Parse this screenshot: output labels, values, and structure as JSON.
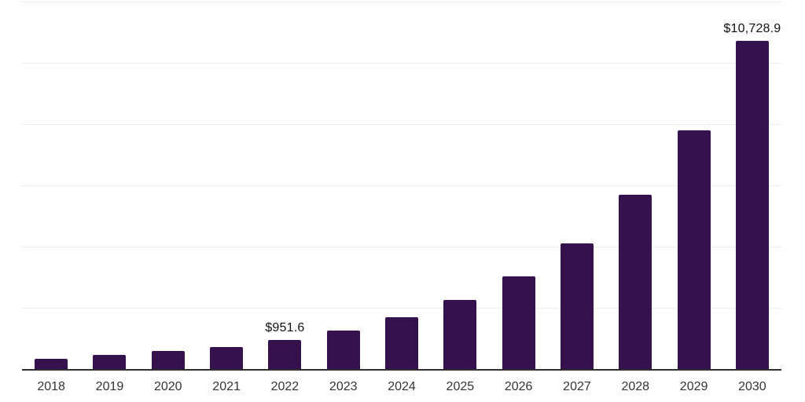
{
  "chart_data": {
    "type": "bar",
    "title": "",
    "xlabel": "",
    "ylabel": "",
    "categories": [
      "2018",
      "2019",
      "2020",
      "2021",
      "2022",
      "2023",
      "2024",
      "2025",
      "2026",
      "2027",
      "2028",
      "2029",
      "2030"
    ],
    "values": [
      330,
      460,
      585,
      730,
      951.6,
      1250,
      1680,
      2250,
      3020,
      4100,
      5690,
      7800,
      10728.9
    ],
    "value_labels": [
      "",
      "",
      "",
      "",
      "$951.6",
      "",
      "",
      "",
      "",
      "",
      "",
      "",
      "$10,728.9"
    ],
    "ylim": [
      0,
      12000
    ],
    "gridline_step": 2000,
    "grid": true,
    "legend": false,
    "y_tick_labels_shown": false,
    "colors": {
      "bar": "#35124D",
      "axis_line": "#2E2E2E",
      "gridline": "#EDEDED",
      "tick_label": "#333333",
      "data_label": "#111111",
      "background": "#FFFFFF"
    }
  }
}
